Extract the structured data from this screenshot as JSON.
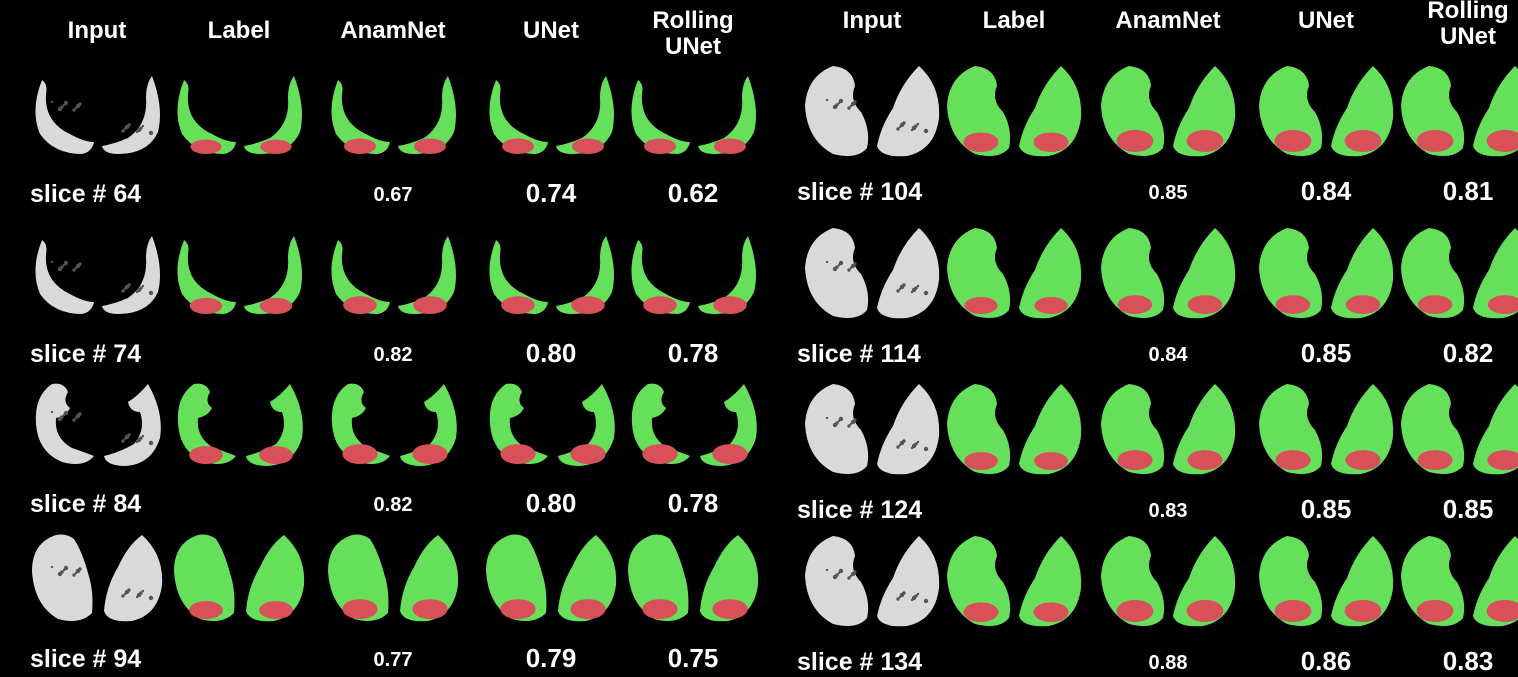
{
  "headers": [
    "Input",
    "Label",
    "AnamNet",
    "UNet",
    "Rolling\nUNet"
  ],
  "colors": {
    "background": "#000000",
    "lung_gray": "#d9d9d9",
    "label_green": "#66e05a",
    "lesion_red": "#d8505a",
    "text": "#ffffff"
  },
  "panels": [
    {
      "rows": [
        {
          "slice": "slice # 64",
          "scores": [
            "0.67",
            "0.74",
            "0.62"
          ],
          "shape": "thin",
          "lesion": 0.25
        },
        {
          "slice": "slice # 74",
          "scores": [
            "0.82",
            "0.80",
            "0.78"
          ],
          "shape": "thin",
          "lesion": 0.35
        },
        {
          "slice": "slice # 84",
          "scores": [
            "0.82",
            "0.80",
            "0.78"
          ],
          "shape": "hook",
          "lesion": 0.45
        },
        {
          "slice": "slice # 94",
          "scores": [
            "0.77",
            "0.79",
            "0.75"
          ],
          "shape": "round",
          "lesion": 0.45
        }
      ]
    },
    {
      "rows": [
        {
          "slice": "slice # 104",
          "scores": [
            "0.85",
            "0.84",
            "0.81"
          ],
          "shape": "full",
          "lesion": 0.55
        },
        {
          "slice": "slice # 114",
          "scores": [
            "0.84",
            "0.85",
            "0.82"
          ],
          "shape": "full",
          "lesion": 0.4
        },
        {
          "slice": "slice # 124",
          "scores": [
            "0.83",
            "0.85",
            "0.85"
          ],
          "shape": "full",
          "lesion": 0.45
        },
        {
          "slice": "slice # 134",
          "scores": [
            "0.88",
            "0.86",
            "0.83"
          ],
          "shape": "full",
          "lesion": 0.55
        }
      ]
    }
  ]
}
